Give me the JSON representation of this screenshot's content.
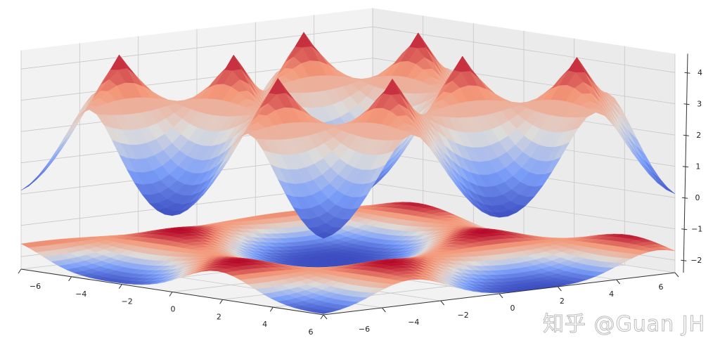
{
  "chart_data": {
    "type": "surface3d",
    "title": "",
    "xlabel": "",
    "ylabel": "",
    "zlabel": "",
    "colormap": "coolwarm",
    "colormap_colors": [
      "#3b4cc0",
      "#7c9ff9",
      "#dddcdb",
      "#f49a7b",
      "#b40426"
    ],
    "xlim": [
      -6,
      6
    ],
    "ylim": [
      -6,
      6
    ],
    "zlim": [
      -2.4,
      4.6
    ],
    "x_ticks": [
      "−6",
      "−4",
      "−2",
      "0",
      "2",
      "4",
      "6"
    ],
    "y_ticks": [
      "−6",
      "−4",
      "−2",
      "0",
      "2",
      "4",
      "6"
    ],
    "z_ticks": [
      "−2",
      "−1",
      "0",
      "1",
      "2",
      "3",
      "4"
    ],
    "grid": true,
    "surfaces": [
      {
        "band": "upper",
        "z_min": 0,
        "z_max": 4.5
      },
      {
        "band": "lower",
        "z_min": -2.4,
        "z_max": -1.4
      }
    ]
  },
  "watermark": "知乎 @Guan JH"
}
